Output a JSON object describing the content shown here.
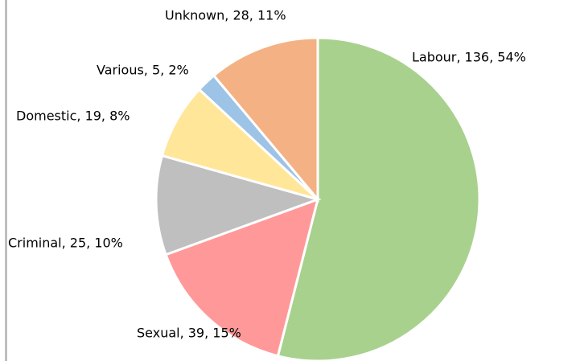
{
  "chart_data": {
    "type": "pie",
    "categories": [
      "Labour",
      "Sexual",
      "Criminal",
      "Domestic",
      "Various",
      "Unknown"
    ],
    "values": [
      136,
      39,
      25,
      19,
      5,
      28
    ],
    "value_labels": [
      "Labour, 136, 54%",
      "Sexual, 39, 15%",
      "Criminal, 25, 10%",
      "Domestic, 19, 8%",
      "Various, 5, 2%",
      "Unknown, 28, 11%"
    ],
    "colors": [
      "#a9d18e",
      "#ff9999",
      "#bfbfbf",
      "#ffe699",
      "#9dc3e6",
      "#f4b183"
    ]
  }
}
